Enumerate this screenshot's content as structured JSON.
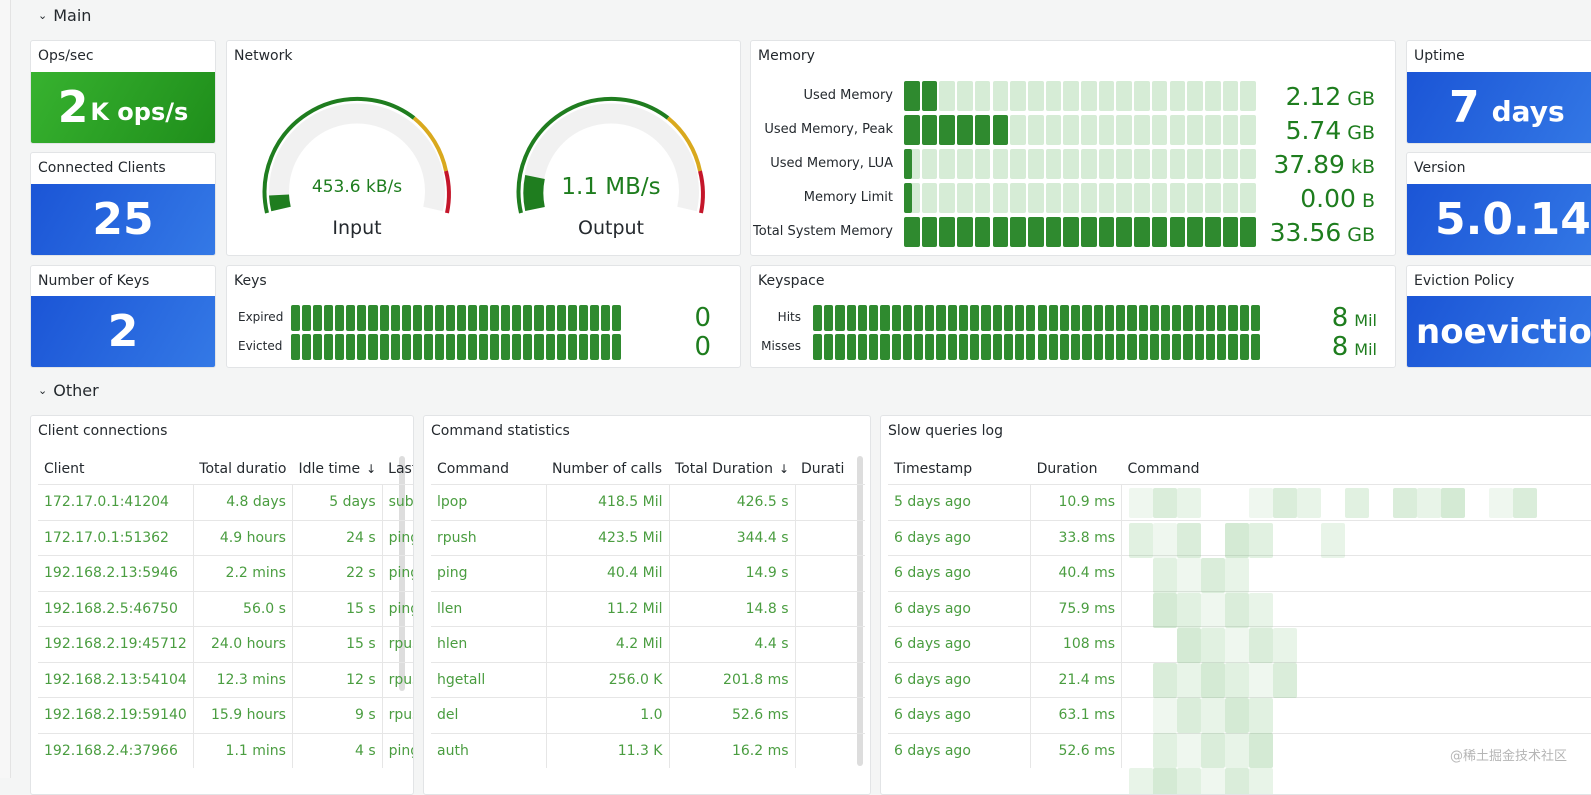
{
  "main": {
    "title": "Main",
    "ops": {
      "title": "Ops/sec",
      "value": "2",
      "unit": "K ops/s"
    },
    "clients": {
      "title": "Connected Clients",
      "value": "25"
    },
    "keys_count": {
      "title": "Number of Keys",
      "value": "2"
    },
    "uptime": {
      "title": "Uptime",
      "value": "7",
      "unit": "days"
    },
    "version": {
      "title": "Version",
      "value": "5.0.14"
    },
    "eviction": {
      "title": "Eviction Policy",
      "value": "noeviction"
    },
    "network": {
      "title": "Network",
      "gauges": [
        {
          "label": "Input",
          "value": "453.6 kB/s"
        },
        {
          "label": "Output",
          "value": "1.1 MB/s"
        }
      ]
    },
    "memory": {
      "title": "Memory",
      "rows": [
        {
          "label": "Used Memory",
          "value": "2.12",
          "unit": "GB"
        },
        {
          "label": "Used Memory, Peak",
          "value": "5.74",
          "unit": "GB"
        },
        {
          "label": "Used Memory, LUA",
          "value": "37.89",
          "unit": "kB"
        },
        {
          "label": "Memory Limit",
          "value": "0.00",
          "unit": "B"
        },
        {
          "label": "Total System Memory",
          "value": "33.56",
          "unit": "GB"
        }
      ]
    },
    "keys": {
      "title": "Keys",
      "rows": [
        {
          "label": "Expired",
          "value": "0"
        },
        {
          "label": "Evicted",
          "value": "0"
        }
      ]
    },
    "keyspace": {
      "title": "Keyspace",
      "rows": [
        {
          "label": "Hits",
          "value": "8",
          "unit": "Mil"
        },
        {
          "label": "Misses",
          "value": "8",
          "unit": "Mil"
        }
      ]
    }
  },
  "other": {
    "title": "Other",
    "client_connections": {
      "title": "Client connections",
      "columns": [
        "Client",
        "Total duratio",
        "Idle time",
        "Last co"
      ],
      "rows": [
        [
          "172.17.0.1:41204",
          "4.8 days",
          "5 days",
          "subscr"
        ],
        [
          "172.17.0.1:51362",
          "4.9 hours",
          "24 s",
          "ping"
        ],
        [
          "192.168.2.13:5946",
          "2.2 mins",
          "22 s",
          "ping"
        ],
        [
          "192.168.2.5:46750",
          "56.0 s",
          "15 s",
          "ping"
        ],
        [
          "192.168.2.19:45712",
          "24.0 hours",
          "15 s",
          "rpush"
        ],
        [
          "192.168.2.13:54104",
          "12.3 mins",
          "12 s",
          "rpush"
        ],
        [
          "192.168.2.19:59140",
          "15.9 hours",
          "9 s",
          "rpush"
        ],
        [
          "192.168.2.4:37966",
          "1.1 mins",
          "4 s",
          "ping"
        ]
      ]
    },
    "command_statistics": {
      "title": "Command statistics",
      "columns": [
        "Command",
        "Number of calls",
        "Total Duration",
        "Durati"
      ],
      "rows": [
        [
          "lpop",
          "418.5 Mil",
          "426.5 s"
        ],
        [
          "rpush",
          "423.5 Mil",
          "344.4 s"
        ],
        [
          "ping",
          "40.4 Mil",
          "14.9 s"
        ],
        [
          "llen",
          "11.2 Mil",
          "14.8 s"
        ],
        [
          "hlen",
          "4.2 Mil",
          "4.4 s"
        ],
        [
          "hgetall",
          "256.0 K",
          "201.8 ms"
        ],
        [
          "del",
          "1.0",
          "52.6 ms"
        ],
        [
          "auth",
          "11.3 K",
          "16.2 ms"
        ]
      ]
    },
    "slow_queries": {
      "title": "Slow queries log",
      "columns": [
        "Timestamp",
        "Duration",
        "Command"
      ],
      "rows": [
        [
          "5 days ago",
          "10.9 ms"
        ],
        [
          "6 days ago",
          "33.8 ms"
        ],
        [
          "6 days ago",
          "40.4 ms"
        ],
        [
          "6 days ago",
          "75.9 ms"
        ],
        [
          "6 days ago",
          "108 ms"
        ],
        [
          "6 days ago",
          "21.4 ms"
        ],
        [
          "6 days ago",
          "63.1 ms"
        ],
        [
          "6 days ago",
          "52.6 ms"
        ]
      ]
    }
  },
  "watermark": "@稀土掘金技术社区"
}
